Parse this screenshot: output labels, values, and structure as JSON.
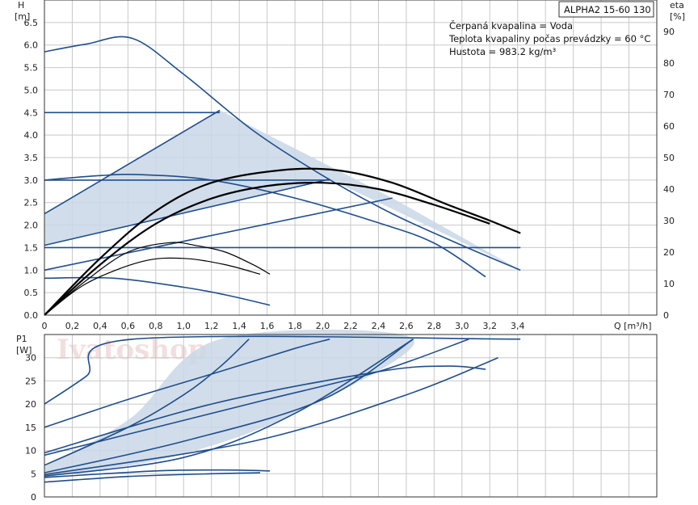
{
  "header": {
    "model_label": "ALPHA2 15-60 130",
    "info_lines": [
      "Čerpaná kvapalina = Voda",
      "Teplota kvapaliny počas prevádzky = 60 °C",
      "Hustota = 983.2 kg/m³"
    ],
    "watermark": "Ivatoshop"
  },
  "colors": {
    "curve": "#1f4e8c",
    "eta": "#000000",
    "fill": "#c9d7e6",
    "grid": "#c8c8c8"
  },
  "chart_data": [
    {
      "type": "line",
      "name": "head",
      "ylabel_line1": "H",
      "ylabel_line2": "[m]",
      "y2label_line1": "eta",
      "y2label_line2": "[%]",
      "xlabel": "Q [m³/h]",
      "xlim": [
        0,
        4.4
      ],
      "ylim": [
        0,
        7
      ],
      "y2lim": [
        0,
        100
      ],
      "x_ticks": [
        "0",
        "0,2",
        "0,4",
        "0,6",
        "0,8",
        "1,0",
        "1,2",
        "1,4",
        "1,6",
        "1,8",
        "2,0",
        "2,2",
        "2,4",
        "2,6",
        "2,8",
        "3,0",
        "3,2",
        "3,4"
      ],
      "y_ticks": [
        "0.0",
        "0.5",
        "1.0",
        "1.5",
        "2.0",
        "2.5",
        "3.0",
        "3.5",
        "4.0",
        "4.5",
        "5.0",
        "5.5",
        "6.0",
        "6.5"
      ],
      "y2_ticks": [
        "0",
        "10",
        "20",
        "30",
        "40",
        "50",
        "60",
        "70",
        "80",
        "90"
      ],
      "grid": true,
      "shaded_region": [
        [
          0,
          1.0
        ],
        [
          0,
          2.25
        ],
        [
          1.26,
          4.55
        ],
        [
          2.5,
          2.6
        ],
        [
          3.42,
          1.0
        ],
        [
          2.05,
          3.02
        ],
        [
          0,
          1.55
        ],
        [
          0,
          1.0
        ]
      ],
      "head_curves": [
        {
          "points": [
            [
              0,
              5.85
            ],
            [
              0.3,
              6.02
            ],
            [
              0.63,
              6.15
            ],
            [
              1.0,
              5.35
            ],
            [
              1.5,
              4.1
            ],
            [
              2.0,
              3.1
            ],
            [
              2.5,
              2.25
            ],
            [
              3.0,
              1.55
            ],
            [
              3.42,
              1.0
            ]
          ]
        },
        {
          "points": [
            [
              0,
              4.5
            ],
            [
              1.26,
              4.5
            ]
          ]
        },
        {
          "points": [
            [
              0,
              3.0
            ],
            [
              2.05,
              3.0
            ]
          ]
        },
        {
          "points": [
            [
              0,
              1.5
            ],
            [
              3.42,
              1.5
            ]
          ]
        },
        {
          "points": [
            [
              0,
              3.0
            ],
            [
              0.4,
              3.1
            ],
            [
              0.7,
              3.12
            ],
            [
              1.2,
              3.0
            ],
            [
              1.8,
              2.6
            ],
            [
              2.4,
              2.05
            ],
            [
              2.8,
              1.6
            ],
            [
              3.17,
              0.85
            ]
          ]
        },
        {
          "points": [
            [
              0,
              0.82
            ],
            [
              0.5,
              0.82
            ],
            [
              1.0,
              0.62
            ],
            [
              1.3,
              0.45
            ],
            [
              1.62,
              0.22
            ]
          ]
        },
        {
          "points": [
            [
              0,
              1.0
            ],
            [
              2.5,
              2.6
            ]
          ]
        },
        {
          "points": [
            [
              0,
              1.55
            ],
            [
              2.05,
              3.02
            ]
          ]
        },
        {
          "points": [
            [
              0,
              2.25
            ],
            [
              1.26,
              4.55
            ]
          ]
        }
      ],
      "eta_curves": [
        {
          "points": [
            [
              0,
              0
            ],
            [
              0.4,
              18
            ],
            [
              0.8,
              33
            ],
            [
              1.2,
              42
            ],
            [
              1.7,
              46
            ],
            [
              2.1,
              46
            ],
            [
              2.5,
              42
            ],
            [
              2.9,
              35
            ],
            [
              3.2,
              30
            ],
            [
              3.42,
              26
            ]
          ]
        },
        {
          "points": [
            [
              0,
              0
            ],
            [
              0.4,
              16
            ],
            [
              0.8,
              29
            ],
            [
              1.2,
              37
            ],
            [
              1.6,
              41
            ],
            [
              2.0,
              42
            ],
            [
              2.4,
              40
            ],
            [
              2.8,
              35
            ],
            [
              3.2,
              29
            ]
          ]
        },
        {
          "points": [
            [
              0,
              0
            ],
            [
              0.3,
              11
            ],
            [
              0.6,
              20
            ],
            [
              0.9,
              23
            ],
            [
              1.1,
              22
            ],
            [
              1.3,
              20
            ],
            [
              1.5,
              16
            ],
            [
              1.62,
              13
            ]
          ]
        },
        {
          "points": [
            [
              0,
              0
            ],
            [
              0.3,
              10
            ],
            [
              0.7,
              17
            ],
            [
              1.0,
              18
            ],
            [
              1.3,
              16
            ],
            [
              1.55,
              13
            ]
          ]
        }
      ]
    },
    {
      "type": "line",
      "name": "power",
      "ylabel_line1": "P1",
      "ylabel_line2": "[W]",
      "xlim": [
        0,
        4.4
      ],
      "ylim": [
        0,
        35
      ],
      "y_ticks": [
        "0",
        "5",
        "10",
        "15",
        "20",
        "25",
        "30"
      ],
      "grid": true,
      "shaded_region": [
        [
          0,
          6.5
        ],
        [
          0.62,
          17
        ],
        [
          1.26,
          34
        ],
        [
          2.65,
          34
        ],
        [
          1.8,
          18
        ],
        [
          0.9,
          8.5
        ],
        [
          0,
          4.2
        ]
      ],
      "power_curves": [
        {
          "points": [
            [
              0,
              20
            ],
            [
              0.3,
              26
            ],
            [
              0.64,
              34
            ],
            [
              3.42,
              34
            ]
          ]
        },
        {
          "points": [
            [
              0,
              15
            ],
            [
              0.6,
              21
            ],
            [
              1.26,
              27
            ],
            [
              1.8,
              32
            ],
            [
              2.05,
              34
            ]
          ]
        },
        {
          "points": [
            [
              0,
              9
            ],
            [
              0.8,
              15
            ],
            [
              1.6,
              21
            ],
            [
              2.4,
              27
            ],
            [
              3.05,
              34
            ]
          ]
        },
        {
          "points": [
            [
              0,
              6.8
            ],
            [
              0.6,
              15
            ],
            [
              1.0,
              22
            ],
            [
              1.26,
              28
            ],
            [
              1.47,
              34
            ]
          ]
        },
        {
          "points": [
            [
              0,
              5.2
            ],
            [
              1.0,
              12
            ],
            [
              2.0,
              21
            ],
            [
              2.65,
              34
            ]
          ]
        },
        {
          "points": [
            [
              0,
              4.8
            ],
            [
              1.5,
              12
            ],
            [
              2.6,
              22
            ],
            [
              3.26,
              30
            ]
          ]
        },
        {
          "points": [
            [
              0,
              9.5
            ],
            [
              1.2,
              20
            ],
            [
              2.4,
              27
            ],
            [
              2.9,
              28.2
            ],
            [
              3.17,
              27.5
            ]
          ]
        },
        {
          "points": [
            [
              0,
              4.2
            ],
            [
              0.8,
              5.6
            ],
            [
              1.3,
              5.8
            ],
            [
              1.62,
              5.6
            ]
          ]
        },
        {
          "points": [
            [
              0,
              3.2
            ],
            [
              0.6,
              4.4
            ],
            [
              1.2,
              5.0
            ],
            [
              1.55,
              5.2
            ]
          ]
        },
        {
          "points": [
            [
              0,
              4.5
            ],
            [
              1.0,
              8.5
            ],
            [
              1.8,
              18
            ],
            [
              2.65,
              34
            ]
          ]
        }
      ]
    }
  ]
}
